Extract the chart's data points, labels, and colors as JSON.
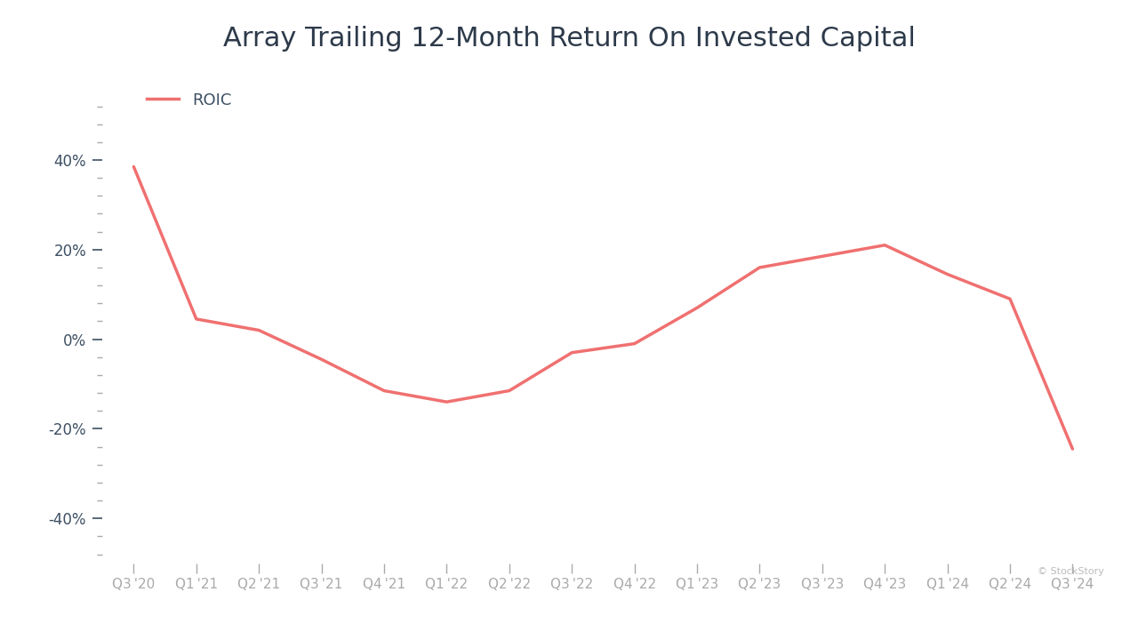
{
  "title": "Array Trailing 12-Month Return On Invested Capital",
  "title_fontsize": 22,
  "title_color": "#2d3a4a",
  "legend_label": "ROIC",
  "line_color": "#f07070",
  "line_width": 2.5,
  "background_color": "#ffffff",
  "x_labels": [
    "Q3 '20",
    "Q1 '21",
    "Q2 '21",
    "Q3 '21",
    "Q4 '21",
    "Q1 '22",
    "Q2 '22",
    "Q3 '22",
    "Q4 '22",
    "Q1 '23",
    "Q2 '23",
    "Q3 '23",
    "Q4 '23",
    "Q1 '24",
    "Q2 '24",
    "Q3 '24"
  ],
  "y_values": [
    0.385,
    0.045,
    0.02,
    -0.045,
    -0.115,
    -0.14,
    -0.115,
    -0.03,
    -0.01,
    0.07,
    0.16,
    0.185,
    0.21,
    0.145,
    0.09,
    -0.245
  ],
  "yticks_major": [
    -0.4,
    -0.2,
    0.0,
    0.2,
    0.4
  ],
  "ylim": [
    -0.5,
    0.6
  ],
  "watermark": "© StockStory",
  "watermark_color": "#bbbbbb",
  "watermark_fontsize": 8,
  "tick_label_color": "#3d4f63",
  "tick_label_fontsize": 12,
  "xtick_label_fontsize": 11
}
